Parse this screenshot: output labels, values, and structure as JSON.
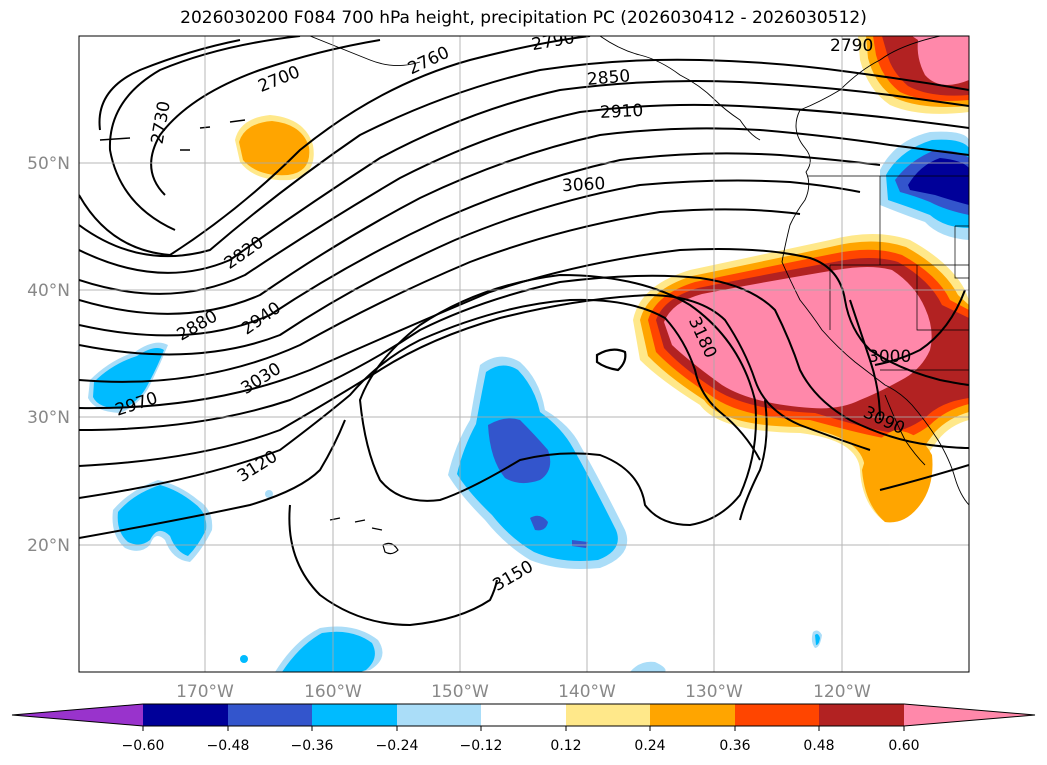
{
  "title": "2026030200 F084 700 hPa height, precipitation PC (2026030412 - 2026030512)",
  "lat_labels": [
    "50°N",
    "40°N",
    "30°N",
    "20°N"
  ],
  "lon_labels": [
    "170°W",
    "160°W",
    "150°W",
    "140°W",
    "130°W",
    "120°W"
  ],
  "contour_labels": [
    "2700",
    "2730",
    "2760",
    "2790",
    "2790",
    "2820",
    "2850",
    "2880",
    "2910",
    "2940",
    "2970",
    "3000",
    "3030",
    "3060",
    "3090",
    "3120",
    "3150",
    "3180"
  ],
  "colorbar": {
    "ticks": [
      "−0.60",
      "−0.48",
      "−0.36",
      "−0.24",
      "−0.12",
      "0.12",
      "0.24",
      "0.36",
      "0.48",
      "0.60"
    ],
    "colors": [
      "#9933cc",
      "#000099",
      "#3355cc",
      "#00bbff",
      "#aaddf8",
      "#ffffff",
      "#ffe88a",
      "#ffa500",
      "#ff4500",
      "#b22222",
      "#ff88aa"
    ]
  },
  "colors": {
    "pink": "#ff88aa",
    "darkred": "#b22222",
    "red": "#ff4500",
    "orange": "#ffa500",
    "yellow": "#ffe88a",
    "lightblue": "#aaddf8",
    "cyan": "#00bbff",
    "blue": "#3355cc",
    "navy": "#000099"
  }
}
